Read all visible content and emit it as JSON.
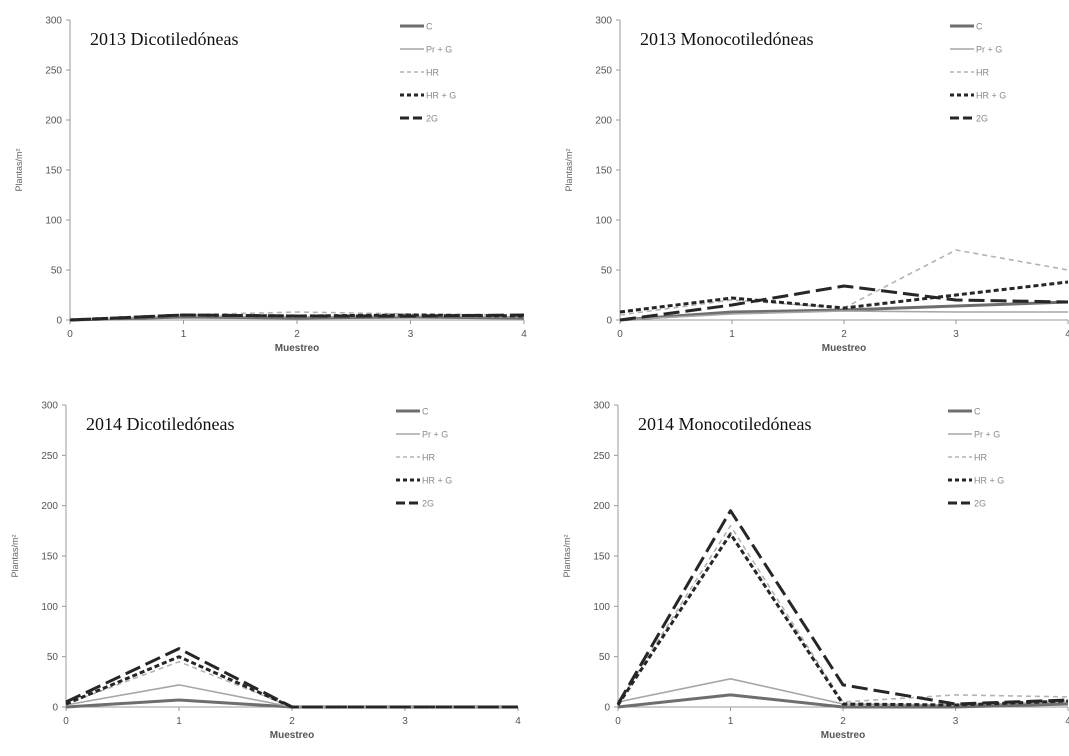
{
  "figure": {
    "ylabel": "Plantas/m²",
    "xlabel": "Muestreo"
  },
  "legend": [
    {
      "name": "C",
      "color": "#6e6e6e",
      "dash": "solid",
      "width": "thick"
    },
    {
      "name": "Pr + G",
      "color": "#a6a6a6",
      "dash": "solid",
      "width": "thin"
    },
    {
      "name": "HR",
      "color": "#b3b3b3",
      "dash": "short-dash",
      "width": "thin"
    },
    {
      "name": "HR + G",
      "color": "#262626",
      "dash": "short-dash",
      "width": "thick"
    },
    {
      "name": "2G",
      "color": "#262626",
      "dash": "long-dash",
      "width": "thick"
    }
  ],
  "chart_data": [
    {
      "type": "line",
      "title": "2013 Dicotiledóneas",
      "xlabel": "Muestreo",
      "ylabel": "Plantas/m²",
      "x": [
        0,
        1,
        2,
        3,
        4
      ],
      "xlim": [
        0,
        4
      ],
      "ylim": [
        0,
        300
      ],
      "yticks": [
        0,
        50,
        100,
        150,
        200,
        250,
        300
      ],
      "grid": false,
      "legend_position": "top-right",
      "series": [
        {
          "name": "C",
          "values": [
            0,
            3,
            2,
            3,
            2
          ]
        },
        {
          "name": "Pr + G",
          "values": [
            0,
            4,
            3,
            4,
            3
          ]
        },
        {
          "name": "HR",
          "values": [
            0,
            5,
            8,
            6,
            5
          ]
        },
        {
          "name": "HR + G",
          "values": [
            0,
            5,
            4,
            5,
            4
          ]
        },
        {
          "name": "2G",
          "values": [
            0,
            5,
            4,
            4,
            5
          ]
        }
      ]
    },
    {
      "type": "line",
      "title": "2013 Monocotiledóneas",
      "xlabel": "Muestreo",
      "ylabel": "Plantas/m²",
      "x": [
        0,
        1,
        2,
        3,
        4
      ],
      "xlim": [
        0,
        4
      ],
      "ylim": [
        0,
        300
      ],
      "yticks": [
        0,
        50,
        100,
        150,
        200,
        250,
        300
      ],
      "grid": false,
      "legend_position": "top-right",
      "series": [
        {
          "name": "C",
          "values": [
            0,
            8,
            10,
            14,
            18
          ]
        },
        {
          "name": "Pr + G",
          "values": [
            0,
            6,
            9,
            8,
            8
          ]
        },
        {
          "name": "HR",
          "values": [
            5,
            20,
            12,
            70,
            50
          ]
        },
        {
          "name": "HR + G",
          "values": [
            8,
            22,
            12,
            25,
            38
          ]
        },
        {
          "name": "2G",
          "values": [
            0,
            15,
            34,
            20,
            18
          ]
        }
      ]
    },
    {
      "type": "line",
      "title": "2014 Dicotiledóneas",
      "xlabel": "Muestreo",
      "ylabel": "Plantas/m²",
      "x": [
        0,
        1,
        2,
        3,
        4
      ],
      "xlim": [
        0,
        4
      ],
      "ylim": [
        0,
        300
      ],
      "yticks": [
        0,
        50,
        100,
        150,
        200,
        250,
        300
      ],
      "grid": false,
      "legend_position": "top-right",
      "series": [
        {
          "name": "C",
          "values": [
            0,
            7,
            0,
            0,
            0
          ]
        },
        {
          "name": "Pr + G",
          "values": [
            2,
            22,
            0,
            0,
            0
          ]
        },
        {
          "name": "HR",
          "values": [
            3,
            45,
            0,
            0,
            0
          ]
        },
        {
          "name": "HR + G",
          "values": [
            3,
            50,
            0,
            0,
            0
          ]
        },
        {
          "name": "2G",
          "values": [
            5,
            58,
            0,
            0,
            0
          ]
        }
      ]
    },
    {
      "type": "line",
      "title": "2014 Monocotiledóneas",
      "xlabel": "Muestreo",
      "ylabel": "Plantas/m²",
      "x": [
        0,
        1,
        2,
        3,
        4
      ],
      "xlim": [
        0,
        4
      ],
      "ylim": [
        0,
        300
      ],
      "yticks": [
        0,
        50,
        100,
        150,
        200,
        250,
        300
      ],
      "grid": false,
      "legend_position": "top-right",
      "series": [
        {
          "name": "C",
          "values": [
            0,
            12,
            0,
            0,
            3
          ]
        },
        {
          "name": "Pr + G",
          "values": [
            5,
            28,
            3,
            2,
            5
          ]
        },
        {
          "name": "HR",
          "values": [
            3,
            180,
            5,
            12,
            10
          ]
        },
        {
          "name": "HR + G",
          "values": [
            2,
            172,
            3,
            2,
            6
          ]
        },
        {
          "name": "2G",
          "values": [
            3,
            195,
            22,
            3,
            7
          ]
        }
      ]
    }
  ]
}
